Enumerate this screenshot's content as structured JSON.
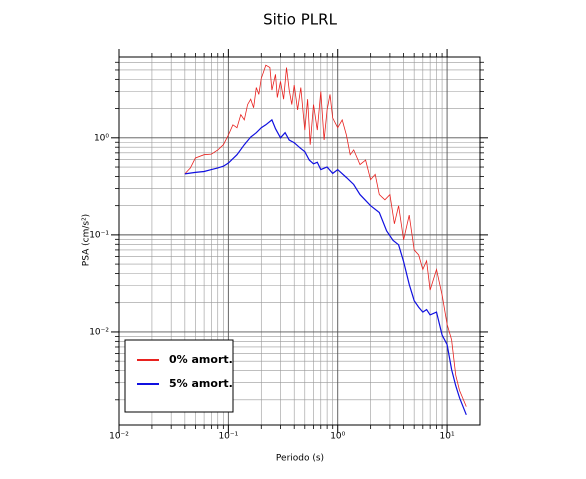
{
  "chart_data": {
    "type": "line",
    "title": "Sitio PLRL",
    "xlabel": "Periodo (s)",
    "ylabel": "PSA (cm/s²)",
    "xscale": "log",
    "yscale": "log",
    "grid": true,
    "legend": "lower left",
    "xlim": [
      0.01,
      20
    ],
    "ylim": [
      0.0011,
      6.8
    ],
    "xticks": [
      {
        "value": 0.01,
        "label": "10⁻²"
      },
      {
        "value": 0.1,
        "label": "10⁻¹"
      },
      {
        "value": 1,
        "label": "10⁰"
      },
      {
        "value": 10,
        "label": "10¹"
      }
    ],
    "yticks": [
      {
        "value": 0.01,
        "label": "10⁻²"
      },
      {
        "value": 0.1,
        "label": "10⁻¹"
      },
      {
        "value": 1,
        "label": "10⁰"
      }
    ],
    "series": [
      {
        "name": "0% amort.",
        "color": "#e8221f",
        "x": [
          0.04,
          0.045,
          0.05,
          0.06,
          0.07,
          0.08,
          0.09,
          0.1,
          0.11,
          0.12,
          0.13,
          0.14,
          0.15,
          0.16,
          0.17,
          0.18,
          0.19,
          0.2,
          0.21,
          0.22,
          0.24,
          0.25,
          0.27,
          0.28,
          0.3,
          0.32,
          0.34,
          0.36,
          0.38,
          0.4,
          0.43,
          0.46,
          0.5,
          0.53,
          0.56,
          0.6,
          0.65,
          0.7,
          0.75,
          0.8,
          0.85,
          0.9,
          1.0,
          1.1,
          1.2,
          1.3,
          1.4,
          1.6,
          1.8,
          2.0,
          2.2,
          2.4,
          2.7,
          3.0,
          3.3,
          3.6,
          4.0,
          4.5,
          5.0,
          5.5,
          6.0,
          6.5,
          7.0,
          8.0,
          9.0,
          10,
          11,
          12,
          13,
          15
        ],
        "values": [
          0.425,
          0.49,
          0.62,
          0.67,
          0.68,
          0.75,
          0.85,
          1.07,
          1.36,
          1.27,
          1.73,
          1.53,
          2.2,
          2.5,
          2.04,
          3.3,
          2.8,
          4.1,
          4.8,
          5.6,
          5.3,
          3.1,
          4.5,
          2.6,
          3.8,
          2.5,
          5.3,
          3.1,
          2.2,
          3.5,
          1.94,
          3.3,
          1.2,
          2.5,
          0.85,
          2.2,
          1.2,
          3.0,
          0.95,
          1.94,
          2.8,
          1.6,
          1.27,
          1.53,
          1.07,
          0.67,
          0.75,
          0.53,
          0.59,
          0.37,
          0.42,
          0.26,
          0.23,
          0.26,
          0.13,
          0.2,
          0.089,
          0.16,
          0.07,
          0.062,
          0.044,
          0.054,
          0.027,
          0.044,
          0.024,
          0.012,
          0.0083,
          0.0036,
          0.0025,
          0.0017
        ]
      },
      {
        "name": "5% amort.",
        "color": "#1010e0",
        "x": [
          0.04,
          0.05,
          0.06,
          0.07,
          0.08,
          0.09,
          0.1,
          0.12,
          0.14,
          0.16,
          0.18,
          0.2,
          0.22,
          0.25,
          0.27,
          0.3,
          0.33,
          0.36,
          0.4,
          0.45,
          0.5,
          0.55,
          0.6,
          0.65,
          0.7,
          0.8,
          0.9,
          1.0,
          1.2,
          1.4,
          1.6,
          2.0,
          2.4,
          2.8,
          3.2,
          3.6,
          4.0,
          4.5,
          5.0,
          5.5,
          6.0,
          6.5,
          7.0,
          8.0,
          9.0,
          10.0,
          11.0,
          12.0,
          13.0,
          15.0
        ],
        "values": [
          0.425,
          0.44,
          0.45,
          0.47,
          0.49,
          0.51,
          0.55,
          0.67,
          0.85,
          1.02,
          1.13,
          1.27,
          1.36,
          1.53,
          1.24,
          1.0,
          1.13,
          0.95,
          0.89,
          0.79,
          0.72,
          0.59,
          0.54,
          0.56,
          0.47,
          0.5,
          0.43,
          0.47,
          0.39,
          0.33,
          0.26,
          0.2,
          0.17,
          0.11,
          0.088,
          0.079,
          0.053,
          0.031,
          0.021,
          0.018,
          0.016,
          0.017,
          0.015,
          0.016,
          0.0093,
          0.0074,
          0.0041,
          0.0028,
          0.0021,
          0.0014
        ]
      }
    ]
  }
}
